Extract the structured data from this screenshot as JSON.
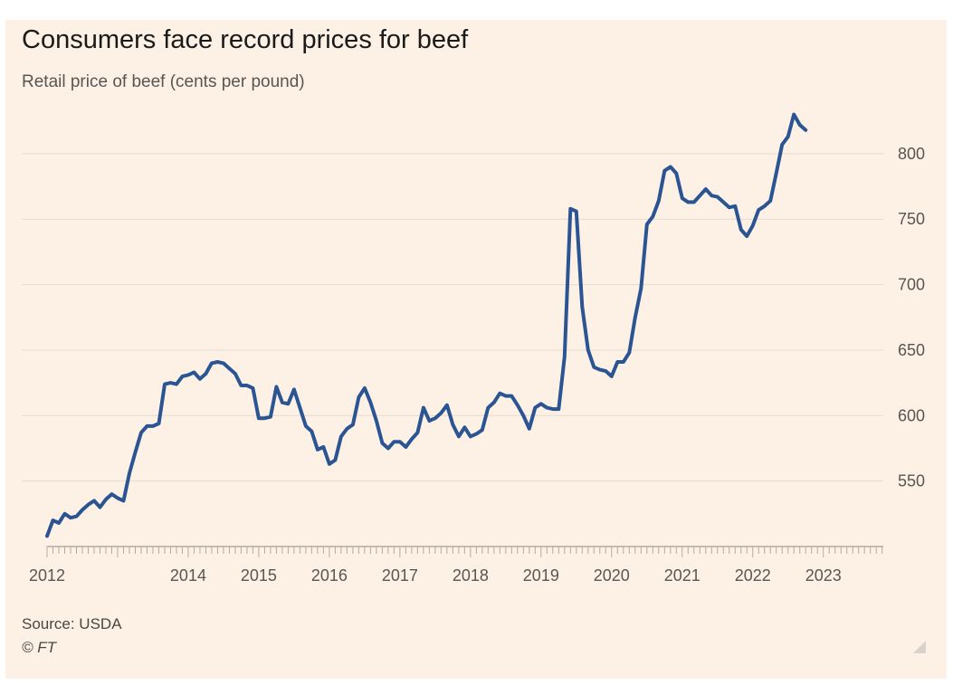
{
  "colors": {
    "background": "#fdf1e6",
    "line": "#2b5592",
    "grid": "#e6dbd1",
    "text": "#5a5552"
  },
  "chart_data": {
    "type": "line",
    "title": "Consumers face record prices for beef",
    "subtitle": "Retail price of beef (cents per pound)",
    "source": "Source: USDA",
    "copyright": "© FT",
    "xlabel": "",
    "ylabel": "",
    "ylim": [
      500,
      840
    ],
    "yticks": [
      550,
      600,
      650,
      700,
      750,
      800
    ],
    "ytick_labels": [
      "550",
      "600",
      "650",
      "700",
      "750",
      "800"
    ],
    "xlim": [
      2012.0,
      2023.85
    ],
    "xticks": [
      2012,
      2014,
      2015,
      2016,
      2017,
      2018,
      2019,
      2020,
      2021,
      2022,
      2023
    ],
    "xtick_labels": [
      "2012",
      "2014",
      "2015",
      "2016",
      "2017",
      "2018",
      "2019",
      "2020",
      "2021",
      "2022",
      "2023"
    ],
    "grid": true,
    "series": [
      {
        "name": "Retail price of beef",
        "x_start": 2012.0,
        "step": 0.0833333,
        "values": [
          508,
          520,
          518,
          525,
          522,
          523,
          528,
          532,
          535,
          530,
          536,
          540,
          537,
          535,
          556,
          572,
          587,
          592,
          592,
          594,
          624,
          625,
          624,
          630,
          631,
          633,
          628,
          632,
          640,
          641,
          640,
          636,
          632,
          623,
          623,
          621,
          598,
          598,
          599,
          622,
          610,
          609,
          620,
          606,
          592,
          588,
          574,
          576,
          563,
          566,
          584,
          590,
          593,
          614,
          621,
          610,
          596,
          579,
          575,
          580,
          580,
          576,
          582,
          587,
          606,
          596,
          598,
          602,
          608,
          593,
          584,
          591,
          584,
          586,
          589,
          606,
          610,
          617,
          615,
          615,
          608,
          600,
          590,
          606,
          609,
          606,
          605,
          605,
          645,
          758,
          756,
          683,
          650,
          637,
          635,
          634,
          630,
          641,
          641,
          648,
          675,
          697,
          746,
          752,
          764,
          787,
          790,
          785,
          766,
          763,
          763,
          768,
          773,
          768,
          767,
          763,
          759,
          760,
          742,
          737,
          745,
          757,
          760,
          764,
          785,
          807,
          813,
          830,
          822,
          818
        ]
      }
    ]
  }
}
